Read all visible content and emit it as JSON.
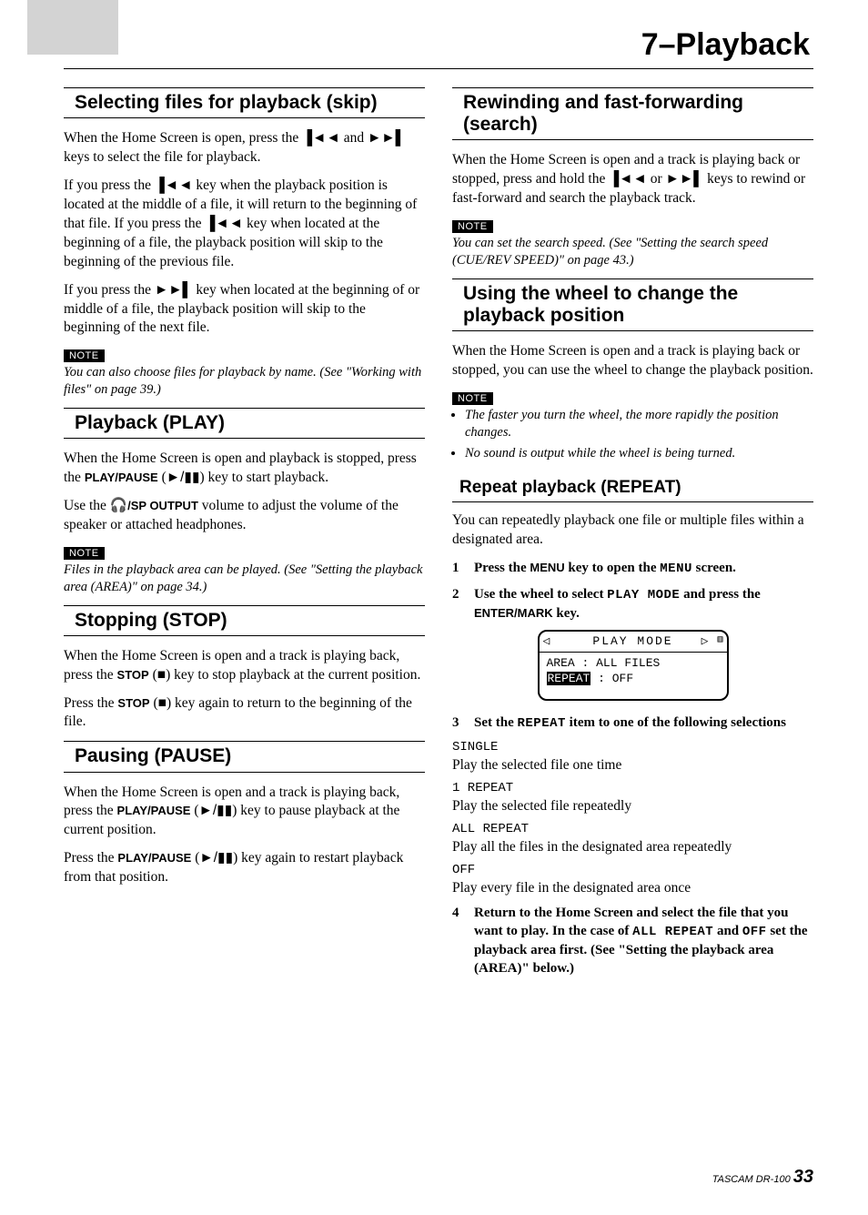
{
  "chapter_title": "7–Playback",
  "left": {
    "sel": {
      "title": "Selecting files for playback (skip)",
      "p1a": "When the Home Screen is open, press the ",
      "p1b": " and ",
      "p1c": " keys to select the file for playback.",
      "p2a": "If you press the ",
      "p2b": " key when the playback position is located at the middle of a file, it will return to the beginning of that file. If you press the ",
      "p2c": " key when located at the beginning of a file, the playback position will skip to the beginning of the previous file.",
      "p3a": "If you press the ",
      "p3b": " key when located at the beginning of or middle of a file, the playback position will skip to the beginning of the next file.",
      "note": "You can also choose files for playback by name. (See \"Working with files\" on page 39.)"
    },
    "play": {
      "title": "Playback (PLAY)",
      "p1a": "When the Home Screen is open and playback is stopped, press the ",
      "p1key": "PLAY/PAUSE",
      "p1b": " (",
      "p1c": ") key to start playback.",
      "p2a": "Use the ",
      "p2key": "/SP OUTPUT",
      "p2b": " volume to adjust the volume of the speaker or attached headphones.",
      "note": "Files in the playback area can be played. (See \"Setting the playback area (AREA)\" on page 34.)"
    },
    "stop": {
      "title": "Stopping (STOP)",
      "p1a": "When the Home Screen is open and a track is playing back, press the ",
      "p1key": "STOP",
      "p1b": " (",
      "p1c": ") key to stop playback at the current position.",
      "p2a": "Press the ",
      "p2key": "STOP",
      "p2b": " (",
      "p2c": ") key again to return to the beginning of the file."
    },
    "pause": {
      "title": "Pausing (PAUSE)",
      "p1a": "When the Home Screen is open and a track is playing back, press the ",
      "p1key": "PLAY/PAUSE",
      "p1b": " (",
      "p1c": ") key to pause playback at the current position.",
      "p2a": "Press the ",
      "p2key": "PLAY/PAUSE",
      "p2b": " (",
      "p2c": ") key again to restart playback from that position."
    }
  },
  "right": {
    "rew": {
      "title": "Rewinding and fast-forwarding (search)",
      "p1a": "When the Home Screen is open and a track is playing back or stopped, press and hold the ",
      "p1b": " or ",
      "p1c": " keys to rewind or fast-forward and search the playback track.",
      "note": "You can set the search speed. (See \"Setting the search speed (CUE/REV SPEED)\" on page 43.)"
    },
    "wheel": {
      "title": "Using the wheel to change the playback position",
      "p1": "When the Home Screen is open and a track is playing back or stopped, you can use the wheel to change the playback position.",
      "notes": [
        "The faster you turn the wheel, the more rapidly the position changes.",
        "No sound is output while the wheel is being turned."
      ]
    },
    "repeat": {
      "title": "Repeat playback (REPEAT)",
      "intro": "You can repeatedly playback one file or multiple files within a designated area.",
      "step1a": "Press the ",
      "step1key": "MENU",
      "step1b": " key to open the ",
      "step1lcd": "MENU",
      "step1c": " screen.",
      "step2a": "Use the wheel to select ",
      "step2lcd": "PLAY MODE",
      "step2b": " and press the ",
      "step2key": "ENTER/MARK",
      "step2c": " key.",
      "lcd": {
        "header": "PLAY MODE",
        "line1a": "AREA  :",
        "line1b": "ALL FILES",
        "line2a": "REPEAT",
        "line2b": ": OFF"
      },
      "step3a": "Set the ",
      "step3lcd": "REPEAT",
      "step3b": " item to one of the following selections",
      "modes": [
        {
          "label": "SINGLE",
          "desc": "Play the selected file one time"
        },
        {
          "label": "1 REPEAT",
          "desc": "Play the selected file repeatedly"
        },
        {
          "label": "ALL REPEAT",
          "desc": "Play all the files in the designated area repeatedly"
        },
        {
          "label": "OFF",
          "desc": "Play every file in the designated area once"
        }
      ],
      "step4a": "Return to the Home Screen and select the file that you want to play. In the case of ",
      "step4lcd1": "ALL REPEAT",
      "step4b": " and ",
      "step4lcd2": "OFF",
      "step4c": " set the playback area first. (See \"Setting the playback area (AREA)\" below.)"
    }
  },
  "glyphs": {
    "prev": "▐◄◄",
    "next": "►►▌",
    "playpause": "►/▮▮",
    "stop": "■",
    "headphone": "🎧"
  },
  "note_label": "NOTE",
  "footer": {
    "brand": "TASCAM  DR-100",
    "page": "33"
  }
}
